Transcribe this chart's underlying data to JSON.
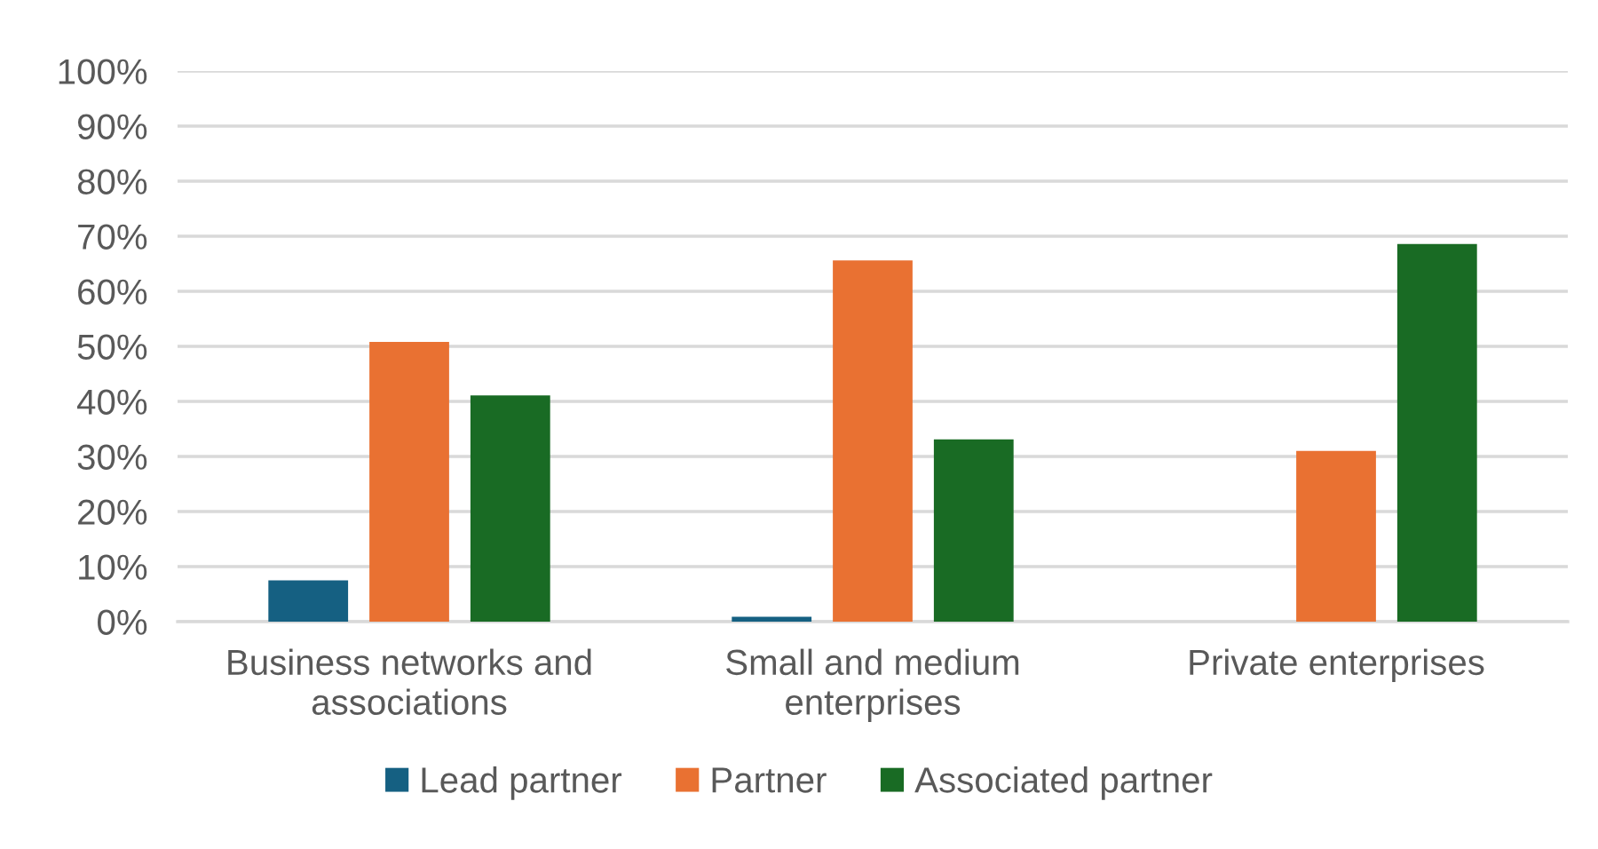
{
  "chart_data": {
    "type": "bar",
    "categories": [
      "Business networks and\nassociations",
      "Small and medium\nenterprises",
      "Private enterprises"
    ],
    "series": [
      {
        "name": "Lead partner",
        "color": "#156082",
        "values": [
          7.5,
          0.9,
          null
        ]
      },
      {
        "name": "Partner",
        "color": "#e97132",
        "values": [
          50.8,
          65.6,
          31
        ]
      },
      {
        "name": "Associated partner",
        "color": "#196b24",
        "values": [
          41.1,
          33.1,
          68.6
        ]
      }
    ],
    "ylim": [
      0,
      100
    ],
    "yticks": [
      {
        "value": 0,
        "label": "0%"
      },
      {
        "value": 10,
        "label": "10%"
      },
      {
        "value": 20,
        "label": "20%"
      },
      {
        "value": 30,
        "label": "30%"
      },
      {
        "value": 40,
        "label": "40%"
      },
      {
        "value": 50,
        "label": "50%"
      },
      {
        "value": 60,
        "label": "60%"
      },
      {
        "value": 70,
        "label": "70%"
      },
      {
        "value": 80,
        "label": "80%"
      },
      {
        "value": 90,
        "label": "90%"
      },
      {
        "value": 100,
        "label": "100%"
      }
    ],
    "grid": "y",
    "legend": "bottom"
  }
}
